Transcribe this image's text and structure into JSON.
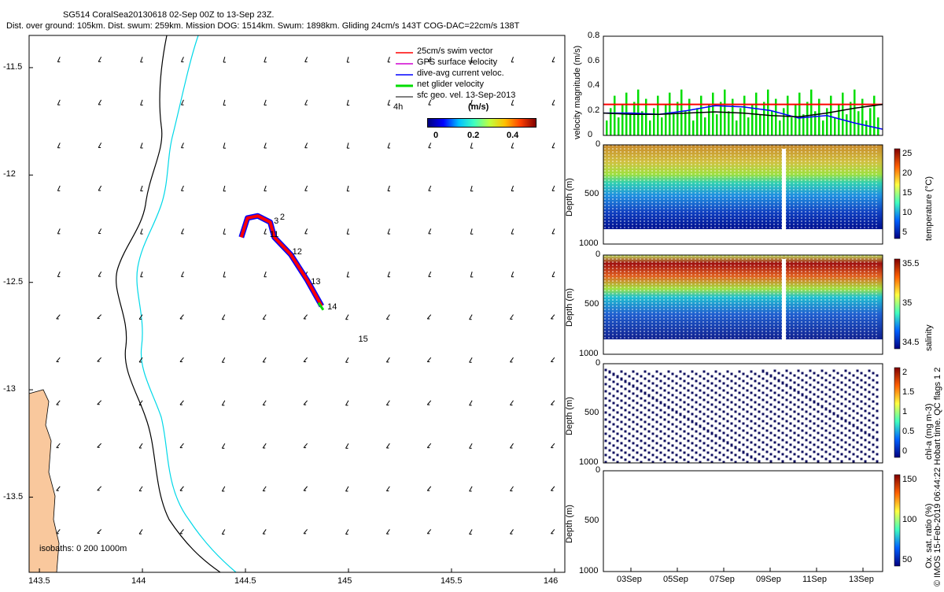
{
  "header": {
    "line1": "SG514 CoralSea20130618 02-Sep 00Z to 13-Sep 23Z.",
    "line2": "Dist. over ground: 105km. Dist. swum: 259km. Mission DOG: 1514km. Swum: 1898km. Gliding 24cm/s 143T COG-DAC=22cm/s 138T"
  },
  "colors": {
    "land": "#f9c89d",
    "isobath_black": "#000000",
    "isobath_cyan": "#00d8e8",
    "swim_vector": "#ff0000",
    "gps_velocity": "#d000d0",
    "dac": "#0000ff",
    "net_velocity": "#00dd00",
    "geo_vel": "#000000"
  },
  "chart_data": [
    {
      "type": "scatter",
      "name": "map",
      "xlim": [
        143.45,
        146.05
      ],
      "ylim": [
        -13.85,
        -11.35
      ],
      "xticks": [
        "143.5",
        "144",
        "144.5",
        "145",
        "145.5",
        "146"
      ],
      "xtick_values": [
        143.5,
        144,
        144.5,
        145,
        145.5,
        146
      ],
      "yticks": [
        "-11.5",
        "-12",
        "-12.5",
        "-13",
        "-13.5"
      ],
      "ytick_values": [
        -11.5,
        -12,
        -12.5,
        -13,
        -13.5
      ],
      "legend": [
        "25cm/s swim vector",
        "GPS surface velocity",
        "dive-avg current veloc.",
        "net glider velocity",
        "sfc geo. vel. 13-Sep-2013"
      ],
      "colorbar": {
        "label": "(m/s)",
        "ticks": [
          "0",
          "0.2",
          "0.4"
        ],
        "range": [
          0,
          0.5
        ]
      },
      "annotation_4h": "4h",
      "isobath_label": "isobaths: 0   200  1000m",
      "day_labels": [
        {
          "label": "2",
          "x": 144.66,
          "y": -12.2
        },
        {
          "label": "3",
          "x": 144.63,
          "y": -12.22
        },
        {
          "label": "11",
          "x": 144.61,
          "y": -12.28
        },
        {
          "label": "12",
          "x": 144.72,
          "y": -12.36
        },
        {
          "label": "13",
          "x": 144.81,
          "y": -12.5
        },
        {
          "label": "14",
          "x": 144.89,
          "y": -12.62
        },
        {
          "label": "15",
          "x": 145.04,
          "y": -12.77
        }
      ],
      "track": [
        [
          144.48,
          -12.29
        ],
        [
          144.51,
          -12.2
        ],
        [
          144.56,
          -12.19
        ],
        [
          144.62,
          -12.22
        ],
        [
          144.64,
          -12.29
        ],
        [
          144.72,
          -12.37
        ],
        [
          144.8,
          -12.49
        ],
        [
          144.87,
          -12.61
        ]
      ]
    },
    {
      "type": "line",
      "name": "velocity",
      "ylabel": "velocity magnitude (m/s)",
      "ylim": [
        0,
        0.8
      ],
      "yticks": [
        "0",
        "0.2",
        "0.4",
        "0.6",
        "0.8"
      ],
      "series": [
        {
          "name": "swim",
          "values": [
            0.25,
            0.25,
            0.25,
            0.25,
            0.25,
            0.25,
            0.25,
            0.25,
            0.25,
            0.25,
            0.25
          ]
        },
        {
          "name": "dac",
          "values": [
            0.18,
            0.18,
            0.17,
            0.2,
            0.24,
            0.23,
            0.2,
            0.14,
            0.16,
            0.1,
            0.05
          ]
        },
        {
          "name": "geo",
          "values": [
            0.18,
            0.17,
            0.17,
            0.18,
            0.19,
            0.18,
            0.16,
            0.15,
            0.18,
            0.22,
            0.25
          ]
        }
      ]
    },
    {
      "type": "heatmap",
      "name": "temperature",
      "ylabel": "Depth (m)",
      "yticks": [
        "0",
        "500",
        "1000"
      ],
      "ylim": [
        0,
        1000
      ],
      "colorbar_label": "temperature (°C)",
      "colorbar_ticks": [
        "25",
        "20",
        "15",
        "10",
        "5"
      ]
    },
    {
      "type": "heatmap",
      "name": "salinity",
      "ylabel": "Depth (m)",
      "yticks": [
        "0",
        "500",
        "1000"
      ],
      "ylim": [
        0,
        1000
      ],
      "colorbar_label": "salinity",
      "colorbar_ticks": [
        "35.5",
        "35",
        "34.5"
      ]
    },
    {
      "type": "heatmap",
      "name": "chla",
      "ylabel": "Depth (m)",
      "yticks": [
        "0",
        "500",
        "1000"
      ],
      "ylim": [
        0,
        1000
      ],
      "colorbar_label": "chl-a (mg m-3)",
      "colorbar_ticks": [
        "2",
        "1.5",
        "1",
        "0.5",
        "0"
      ]
    },
    {
      "type": "heatmap",
      "name": "oxygen",
      "ylabel": "Depth (m)",
      "yticks": [
        "0",
        "500",
        "1000"
      ],
      "ylim": [
        0,
        1000
      ],
      "colorbar_label": "Ox. sat. ratio (%)",
      "colorbar_ticks": [
        "150",
        "100",
        "50"
      ],
      "xticks": [
        "03Sep",
        "05Sep",
        "07Sep",
        "09Sep",
        "11Sep",
        "13Sep"
      ]
    }
  ],
  "side_note": "© IMOS 15-Feb-2019 06:44:22 Hobart time. QC flags 1  2"
}
